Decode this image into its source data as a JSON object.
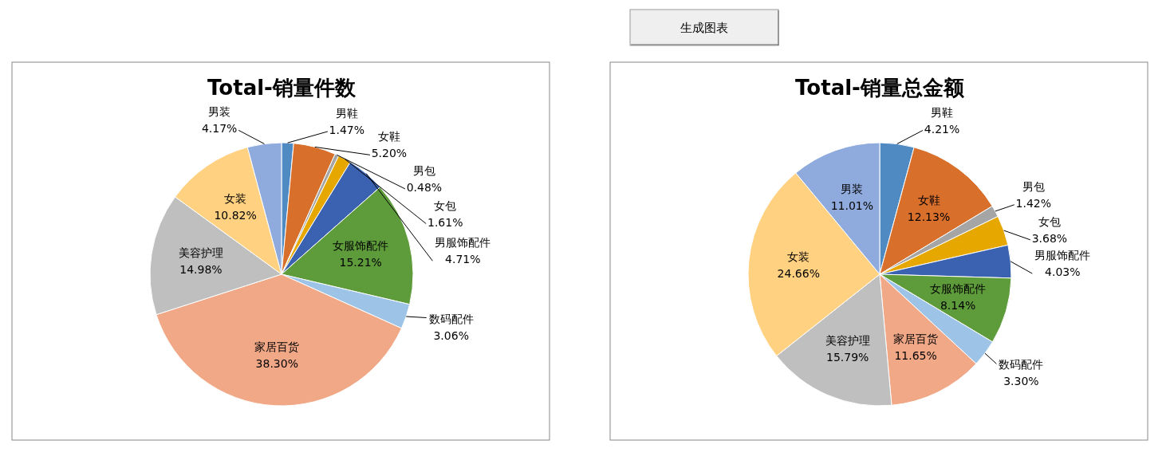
{
  "chart_data": [
    {
      "type": "other",
      "title": "生成图表"
    },
    {
      "type": "pie",
      "title": "Total-销量件数",
      "categories": [
        "男鞋",
        "女鞋",
        "男包",
        "女包",
        "男服饰配件",
        "女服饰配件",
        "数码配件",
        "家居百货",
        "美容护理",
        "女装",
        "男装"
      ],
      "values": [
        1.47,
        5.2,
        0.48,
        1.61,
        4.71,
        15.21,
        3.06,
        38.3,
        14.98,
        10.82,
        4.17
      ],
      "value_labels": [
        "1.47%",
        "5.20%",
        "0.48%",
        "1.61%",
        "4.71%",
        "15.21%",
        "3.06%",
        "38.30%",
        "14.98%",
        "10.82%",
        "4.17%"
      ],
      "colors": [
        "#4f8ac2",
        "#d86f2b",
        "#a5a5a5",
        "#e6a800",
        "#3a62b0",
        "#5e9b3b",
        "#9dc3e6",
        "#f1a887",
        "#bfbfbf",
        "#ffd180",
        "#8faadc"
      ]
    },
    {
      "type": "pie",
      "title": "Total-销量总金额",
      "categories": [
        "男鞋",
        "女鞋",
        "男包",
        "女包",
        "男服饰配件",
        "女服饰配件",
        "数码配件",
        "家居百货",
        "美容护理",
        "女装",
        "男装"
      ],
      "values": [
        4.21,
        12.13,
        1.42,
        3.68,
        4.03,
        8.14,
        3.3,
        11.65,
        15.79,
        24.66,
        11.01
      ],
      "value_labels": [
        "4.21%",
        "12.13%",
        "1.42%",
        "3.68%",
        "4.03%",
        "8.14%",
        "3.30%",
        "11.65%",
        "15.79%",
        "24.66%",
        "11.01%"
      ],
      "colors": [
        "#4f8ac2",
        "#d86f2b",
        "#a5a5a5",
        "#e6a800",
        "#3a62b0",
        "#5e9b3b",
        "#9dc3e6",
        "#f1a887",
        "#bfbfbf",
        "#ffd180",
        "#8faadc"
      ]
    }
  ]
}
